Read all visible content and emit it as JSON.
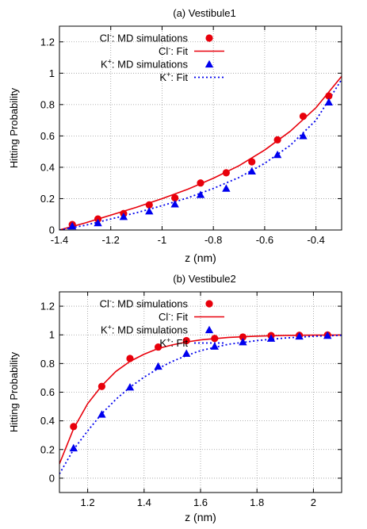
{
  "chart_data": [
    {
      "type": "scatter",
      "title": "(a) Vestibule1",
      "xlabel": "z (nm)",
      "ylabel": "Hitting Probability",
      "xlim": [
        -1.4,
        -0.3
      ],
      "ylim": [
        0,
        1.3
      ],
      "xticks": [
        -1.4,
        -1.2,
        -1.0,
        -0.8,
        -0.6,
        -0.4
      ],
      "xtick_labels": [
        "-1.4",
        "-1.2",
        "-1",
        "-0.8",
        "-0.6",
        "-0.4"
      ],
      "yticks": [
        0,
        0.2,
        0.4,
        0.6,
        0.8,
        1.0,
        1.2
      ],
      "ytick_labels": [
        "0",
        "0.2",
        "0.4",
        "0.6",
        "0.8",
        "1",
        "1.2"
      ],
      "grid": true,
      "legend_position": "top-left",
      "series": [
        {
          "name": "Cl⁻: MD simulations",
          "kind": "points",
          "marker": "circle",
          "color": "#e8000b",
          "x": [
            -1.35,
            -1.25,
            -1.15,
            -1.05,
            -0.95,
            -0.85,
            -0.75,
            -0.65,
            -0.55,
            -0.45,
            -0.35
          ],
          "y": [
            0.035,
            0.07,
            0.105,
            0.16,
            0.205,
            0.3,
            0.365,
            0.435,
            0.575,
            0.725,
            0.855
          ]
        },
        {
          "name": "Cl⁻: Fit",
          "kind": "line",
          "dash": "solid",
          "color": "#e8000b",
          "x": [
            -1.4,
            -1.3,
            -1.2,
            -1.1,
            -1.0,
            -0.9,
            -0.8,
            -0.7,
            -0.6,
            -0.5,
            -0.4,
            -0.3
          ],
          "y": [
            0.0,
            0.045,
            0.095,
            0.145,
            0.2,
            0.26,
            0.33,
            0.41,
            0.51,
            0.63,
            0.78,
            0.98
          ]
        },
        {
          "name": "K⁺: MD simulations",
          "kind": "points",
          "marker": "triangle",
          "color": "#0000ee",
          "x": [
            -1.35,
            -1.25,
            -1.15,
            -1.05,
            -0.95,
            -0.85,
            -0.75,
            -0.65,
            -0.55,
            -0.45,
            -0.35
          ],
          "y": [
            0.025,
            0.045,
            0.085,
            0.12,
            0.165,
            0.225,
            0.265,
            0.375,
            0.48,
            0.6,
            0.815
          ]
        },
        {
          "name": "K⁺: Fit",
          "kind": "line",
          "dash": "dotted",
          "color": "#0000ee",
          "x": [
            -1.4,
            -1.3,
            -1.2,
            -1.1,
            -1.0,
            -0.9,
            -0.8,
            -0.7,
            -0.6,
            -0.5,
            -0.4,
            -0.3
          ],
          "y": [
            0.0,
            0.03,
            0.07,
            0.11,
            0.155,
            0.205,
            0.265,
            0.335,
            0.425,
            0.54,
            0.7,
            0.96
          ]
        }
      ]
    },
    {
      "type": "scatter",
      "title": "(b) Vestibule2",
      "xlabel": "z (nm)",
      "ylabel": "Hitting Probability",
      "xlim": [
        1.1,
        2.1
      ],
      "ylim": [
        -0.1,
        1.3
      ],
      "xticks": [
        1.2,
        1.4,
        1.6,
        1.8,
        2.0
      ],
      "xtick_labels": [
        "1.2",
        "1.4",
        "1.6",
        "1.8",
        "2"
      ],
      "yticks": [
        0,
        0.2,
        0.4,
        0.6,
        0.8,
        1.0,
        1.2
      ],
      "ytick_labels": [
        "0",
        "0.2",
        "0.4",
        "0.6",
        "0.8",
        "1",
        "1.2"
      ],
      "grid": true,
      "legend_position": "top-left",
      "series": [
        {
          "name": "Cl⁻: MD simulations",
          "kind": "points",
          "marker": "circle",
          "color": "#e8000b",
          "x": [
            1.15,
            1.25,
            1.35,
            1.45,
            1.55,
            1.65,
            1.75,
            1.85,
            1.95,
            2.05
          ],
          "y": [
            0.36,
            0.64,
            0.835,
            0.915,
            0.96,
            0.975,
            0.985,
            0.995,
            0.997,
            0.999
          ]
        },
        {
          "name": "Cl⁻: Fit",
          "kind": "line",
          "dash": "solid",
          "color": "#e8000b",
          "x": [
            1.1,
            1.15,
            1.2,
            1.25,
            1.3,
            1.35,
            1.4,
            1.45,
            1.5,
            1.55,
            1.6,
            1.7,
            1.8,
            1.9,
            2.0,
            2.1
          ],
          "y": [
            0.1,
            0.345,
            0.52,
            0.645,
            0.745,
            0.815,
            0.865,
            0.905,
            0.93,
            0.95,
            0.965,
            0.982,
            0.991,
            0.996,
            0.998,
            0.999
          ]
        },
        {
          "name": "K⁺: MD simulations",
          "kind": "points",
          "marker": "triangle",
          "color": "#0000ee",
          "x": [
            1.15,
            1.25,
            1.35,
            1.45,
            1.55,
            1.65,
            1.75,
            1.85,
            1.95,
            2.05
          ],
          "y": [
            0.21,
            0.445,
            0.635,
            0.78,
            0.87,
            0.92,
            0.95,
            0.975,
            0.99,
            0.995
          ]
        },
        {
          "name": "K⁺: Fit",
          "kind": "line",
          "dash": "dotted",
          "color": "#0000ee",
          "x": [
            1.1,
            1.15,
            1.2,
            1.25,
            1.3,
            1.35,
            1.4,
            1.45,
            1.5,
            1.55,
            1.6,
            1.7,
            1.8,
            1.9,
            2.0,
            2.1
          ],
          "y": [
            0.03,
            0.2,
            0.33,
            0.45,
            0.55,
            0.635,
            0.705,
            0.765,
            0.815,
            0.855,
            0.89,
            0.935,
            0.96,
            0.978,
            0.99,
            0.997
          ]
        }
      ]
    }
  ]
}
